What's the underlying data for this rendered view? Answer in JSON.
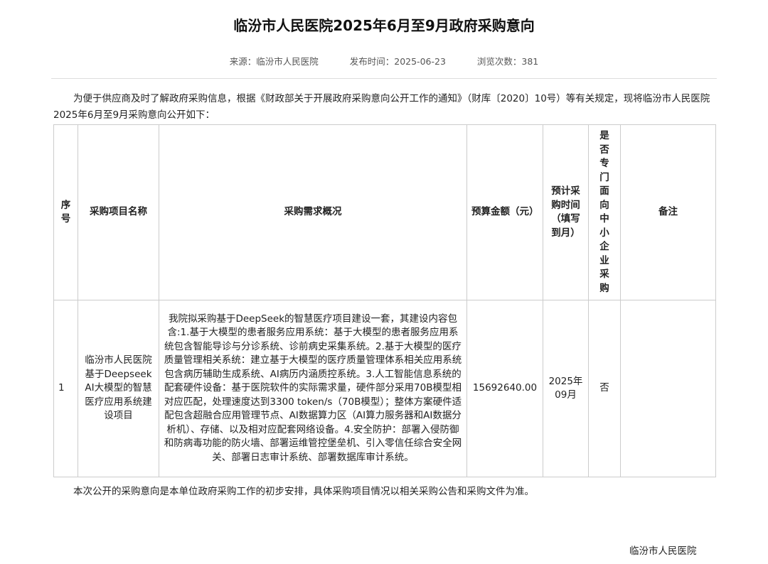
{
  "title": "临汾市人民医院2025年6月至9月政府采购意向",
  "meta": {
    "source": "来源：临汾市人民医院",
    "date": "发布时间：2025-06-23",
    "views": "浏览次数：381"
  },
  "intro": "为便于供应商及时了解政府采购信息，根据《财政部关于开展政府采购意向公开工作的通知》（财库〔2020〕10号）等有关规定，现将临汾市人民医院2025年6月至9月采购意向公开如下：",
  "table": {
    "headers": [
      "序号",
      "采购项目名称",
      "采购需求概况",
      "预算金额（元）",
      "预计采购时间（填写到月）",
      "是否专门面向中小企业采购",
      "备注"
    ],
    "rows": [
      {
        "no": "1",
        "name": "临汾市人民医院基于Deepseek AI大模型的智慧医疗应用系统建设项目",
        "desc": "我院拟采购基于DeepSeek的智慧医疗项目建设一套，其建设内容包含:1.基于大模型的患者服务应用系统：基于大模型的患者服务应用系统包含智能导诊与分诊系统、诊前病史采集系统。2.基于大模型的医疗质量管理相关系统：建立基于大模型的医疗质量管理体系相关应用系统包含病历辅助生成系统、AI病历内涵质控系统。3.人工智能信息系统的配套硬件设备：基于医院软件的实际需求量，硬件部分采用70B模型相对应匹配，处理速度达到3300 token/s（70B模型）；整体方案硬件适配包含超融合应用管理节点、AI数据算力区（AI算力服务器和AI数据分析机）、存储、以及相对应配套网络设备。4.安全防护：部署入侵防御和防病毒功能的防火墙、部署运维管控堡垒机、引入零信任综合安全网关、部署日志审计系统、部署数据库审计系统。",
        "budget": "15692640.00",
        "time": "2025年09月",
        "sme": "否",
        "remark": ""
      }
    ]
  },
  "note": "本次公开的采购意向是本单位政府采购工作的初步安排，具体采购项目情况以相关采购公告和采购文件为准。",
  "signature": "临汾市人民医院"
}
